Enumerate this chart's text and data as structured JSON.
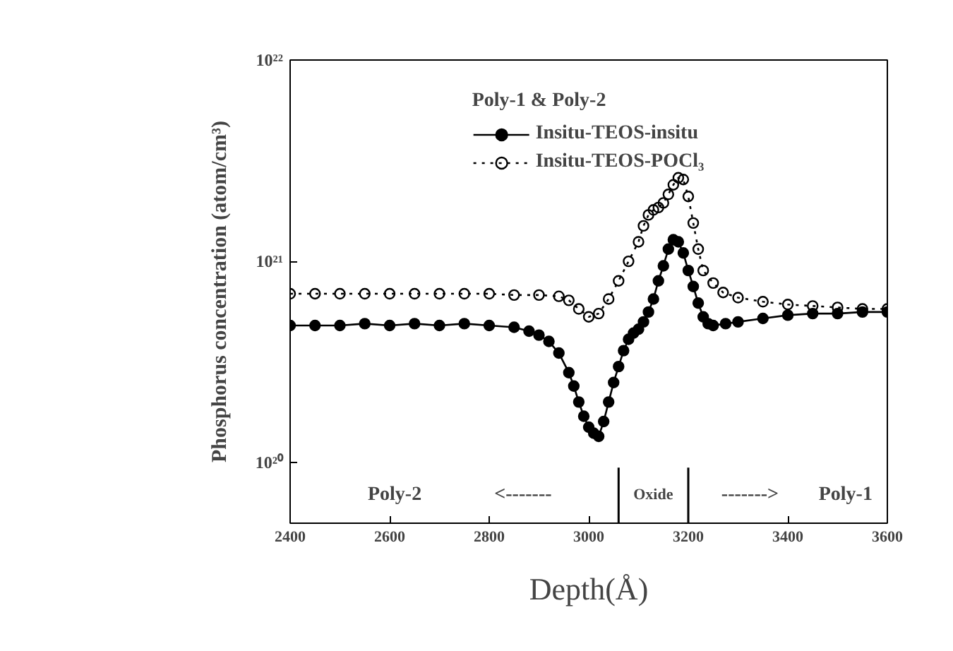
{
  "chart_data": {
    "type": "line",
    "xlabel": "Depth(Å)",
    "ylabel": "Phosphorus concentration (atom/cm³)",
    "legend_title": "Poly-1 & Poly-2",
    "log": "y",
    "xlim": [
      2400,
      3600
    ],
    "xticks": [
      2400,
      2600,
      2800,
      3000,
      3200,
      3400,
      3600
    ],
    "ylim": [
      5e+19,
      1e+22
    ],
    "yticks": [
      {
        "value": 1e+20,
        "label": "10²⁰"
      },
      {
        "value": 1e+21,
        "label": "10²¹"
      },
      {
        "value": 1e+22,
        "label": "10²²"
      }
    ],
    "grid": false,
    "legend": "top",
    "marker": "circle",
    "series": [
      {
        "name": "Insitu-TEOS-insitu",
        "color": "#000000",
        "line_style": "solid",
        "x": [
          2400,
          2450,
          2500,
          2550,
          2600,
          2650,
          2700,
          2750,
          2800,
          2850,
          2880,
          2900,
          2920,
          2940,
          2960,
          2970,
          2980,
          2990,
          3000,
          3010,
          3020,
          3030,
          3040,
          3050,
          3060,
          3070,
          3080,
          3090,
          3100,
          3110,
          3120,
          3130,
          3140,
          3150,
          3160,
          3170,
          3180,
          3190,
          3200,
          3210,
          3220,
          3230,
          3240,
          3250,
          3275,
          3300,
          3350,
          3400,
          3450,
          3500,
          3550,
          3600
        ],
        "values": [
          4.8e+20,
          4.8e+20,
          4.8e+20,
          4.9e+20,
          4.8e+20,
          4.9e+20,
          4.8e+20,
          4.9e+20,
          4.8e+20,
          4.7e+20,
          4.5e+20,
          4.3e+20,
          4e+20,
          3.5e+20,
          2.8e+20,
          2.4e+20,
          2e+20,
          1.7e+20,
          1.5e+20,
          1.4e+20,
          1.35e+20,
          1.6e+20,
          2e+20,
          2.5e+20,
          3e+20,
          3.6e+20,
          4.1e+20,
          4.4e+20,
          4.6e+20,
          5e+20,
          5.6e+20,
          6.5e+20,
          8e+20,
          9.5e+20,
          1.15e+21,
          1.28e+21,
          1.25e+21,
          1.1e+21,
          9e+20,
          7.5e+20,
          6.2e+20,
          5.3e+20,
          4.9e+20,
          4.8e+20,
          4.9e+20,
          5e+20,
          5.2e+20,
          5.4e+20,
          5.5e+20,
          5.5e+20,
          5.6e+20,
          5.6e+20
        ]
      },
      {
        "name": "Insitu-TEOS-POCl₃",
        "color": "#000000",
        "line_style": "dotted",
        "x": [
          2400,
          2450,
          2500,
          2550,
          2600,
          2650,
          2700,
          2750,
          2800,
          2850,
          2900,
          2940,
          2960,
          2980,
          3000,
          3020,
          3040,
          3060,
          3080,
          3100,
          3110,
          3120,
          3130,
          3140,
          3150,
          3160,
          3170,
          3180,
          3190,
          3200,
          3210,
          3220,
          3230,
          3250,
          3270,
          3300,
          3350,
          3400,
          3450,
          3500,
          3550,
          3600
        ],
        "values": [
          6.9e+20,
          6.9e+20,
          6.9e+20,
          6.9e+20,
          6.9e+20,
          6.9e+20,
          6.9e+20,
          6.9e+20,
          6.9e+20,
          6.8e+20,
          6.8e+20,
          6.7e+20,
          6.4e+20,
          5.8e+20,
          5.3e+20,
          5.5e+20,
          6.5e+20,
          8e+20,
          1e+21,
          1.25e+21,
          1.5e+21,
          1.7e+21,
          1.8e+21,
          1.85e+21,
          1.95e+21,
          2.15e+21,
          2.4e+21,
          2.6e+21,
          2.55e+21,
          2.1e+21,
          1.55e+21,
          1.15e+21,
          9e+20,
          7.8e+20,
          7e+20,
          6.6e+20,
          6.3e+20,
          6.1e+20,
          6e+20,
          5.9e+20,
          5.8e+20,
          5.8e+20
        ]
      }
    ],
    "ref_lines": [
      {
        "axis": "x",
        "value": 3060
      },
      {
        "axis": "x",
        "value": 3200
      }
    ],
    "annotations": [
      "Poly-2",
      "<-------",
      "Oxide",
      "------->",
      "Poly-1"
    ]
  }
}
